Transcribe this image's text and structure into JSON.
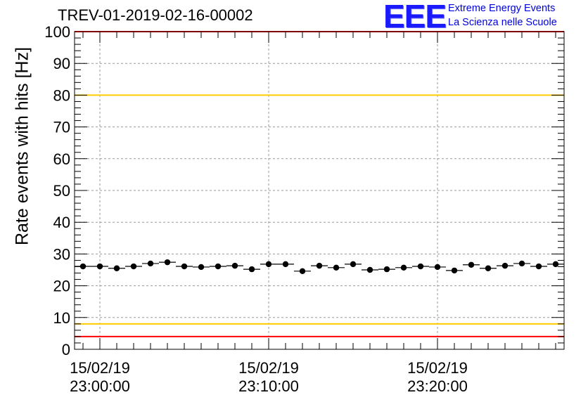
{
  "chart_data": {
    "type": "scatter",
    "title": "TREV-01-2019-02-16-00002",
    "ylabel": "Rate events with hits [Hz]",
    "xlabel": "",
    "ylim": [
      0,
      100
    ],
    "xlim": [
      "15/02/19 22:58:30",
      "15/02/19 23:27:30"
    ],
    "y_ticks": [
      0,
      10,
      20,
      30,
      40,
      50,
      60,
      70,
      80,
      90,
      100
    ],
    "x_tick_labels": [
      {
        "date": "15/02/19",
        "time": "23:00:00"
      },
      {
        "date": "15/02/19",
        "time": "23:10:00"
      },
      {
        "date": "15/02/19",
        "time": "23:20:00"
      }
    ],
    "grid": true,
    "reference_lines": [
      {
        "y": 100,
        "color": "#ff0000"
      },
      {
        "y": 80,
        "color": "#ffcc00"
      },
      {
        "y": 8,
        "color": "#ffcc00"
      },
      {
        "y": 4,
        "color": "#ff0000"
      }
    ],
    "series": [
      {
        "x": [
          "22:59:00",
          "23:00:00",
          "23:01:00",
          "23:02:00",
          "23:03:00",
          "23:04:00",
          "23:05:00",
          "23:06:00",
          "23:07:00",
          "23:08:00",
          "23:09:00",
          "23:10:00",
          "23:11:00",
          "23:12:00",
          "23:13:00",
          "23:14:00",
          "23:15:00",
          "23:16:00",
          "23:17:00",
          "23:18:00",
          "23:19:00",
          "23:20:00",
          "23:21:00",
          "23:22:00",
          "23:23:00",
          "23:24:00",
          "23:25:00",
          "23:26:00",
          "23:27:00"
        ],
        "y": [
          26.1,
          26.1,
          25.5,
          26.1,
          27.0,
          27.4,
          26.1,
          25.9,
          26.1,
          26.3,
          25.2,
          26.8,
          26.8,
          24.6,
          26.3,
          25.7,
          26.8,
          25.0,
          25.2,
          25.7,
          26.1,
          25.9,
          24.8,
          26.6,
          25.5,
          26.3,
          27.0,
          26.1,
          26.8
        ]
      }
    ],
    "colors": {
      "marker": "#000000",
      "grid": "#9a9a9a",
      "red_line": "#ff0000",
      "yellow_line": "#ffcc00"
    }
  },
  "logo": {
    "mark": "EEE",
    "line1": "Extreme Energy Events",
    "line2": "La Scienza nelle Scuole"
  }
}
